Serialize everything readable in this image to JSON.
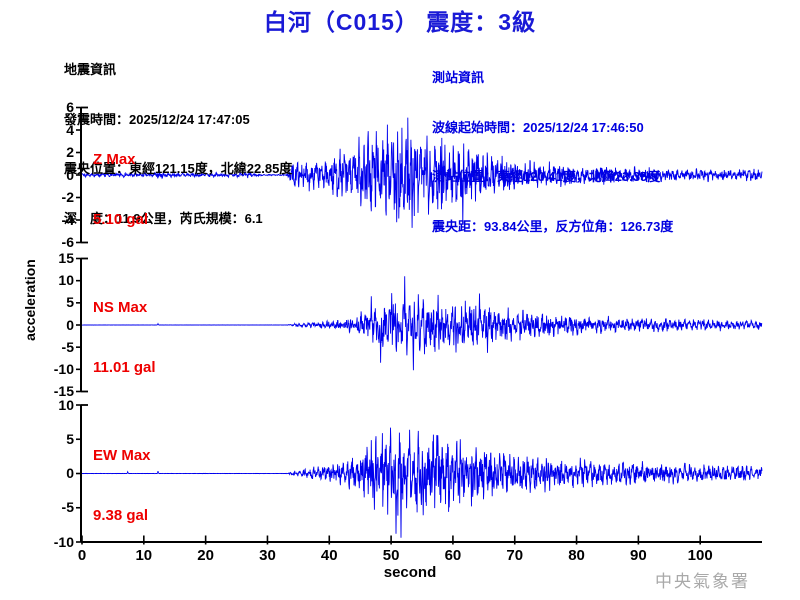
{
  "header": {
    "title": "白河（C015） 震度：3級"
  },
  "quake_info": {
    "heading": "地震資訊",
    "lines": [
      "發震時間：2025/12/24 17:47:05",
      "震央位置：東經121.15度，北緯22.85度",
      "深　度：11.9公里，芮氏規模：6.1"
    ]
  },
  "station_info": {
    "heading": "測站資訊",
    "lines": [
      "波線起始時間：2025/12/24 17:46:50",
      "測站位置：東經120.41度，北緯23.35度",
      "震央距：93.84公里，反方位角：126.73度"
    ]
  },
  "watermark": "中央氣象署",
  "colors": {
    "title": "#1a1ad6",
    "quake_info": "#000000",
    "station_info": "#0000e0",
    "max_label": "#ee0000",
    "trace": "#0000ee",
    "axis": "#000000",
    "watermark": "#a9a9a9"
  },
  "chart_data": {
    "type": "line",
    "title": "",
    "xlabel": "second",
    "ylabel": "acceleration",
    "y_unit": "gal",
    "x_range": [
      0,
      110
    ],
    "x_ticks": [
      0,
      10,
      20,
      30,
      40,
      50,
      60,
      70,
      80,
      90,
      100
    ],
    "grid": false,
    "channels": [
      {
        "name": "Z",
        "max_label": "Z Max",
        "max_value_label": "5.10 gal",
        "max_value_gal": 5.1,
        "ylim": [
          -6,
          6
        ],
        "yticks": [
          6,
          4,
          2,
          0,
          -2,
          -4,
          -6
        ],
        "onset_s": 33.5,
        "seed": 7,
        "envelope_gal": [
          [
            0,
            0.13
          ],
          [
            11.5,
            0.13
          ],
          [
            12.5,
            0.28
          ],
          [
            13.5,
            0.13
          ],
          [
            25.5,
            0.13
          ],
          [
            26.5,
            0.22
          ],
          [
            28,
            0.1
          ],
          [
            29.5,
            0.04
          ],
          [
            33,
            0.04
          ],
          [
            34,
            0.75
          ],
          [
            36,
            0.9
          ],
          [
            40,
            1.15
          ],
          [
            44,
            2.0
          ],
          [
            48,
            2.8
          ],
          [
            54,
            2.9
          ],
          [
            58,
            2.3
          ],
          [
            62,
            1.9
          ],
          [
            66,
            1.3
          ],
          [
            72,
            0.9
          ],
          [
            80,
            0.6
          ],
          [
            90,
            0.45
          ],
          [
            100,
            0.4
          ],
          [
            110,
            0.35
          ]
        ],
        "spikes_gal": [
          [
            44.8,
            3.4
          ],
          [
            47.6,
            3.9
          ],
          [
            49.2,
            -3.6
          ],
          [
            50.9,
            -4.2
          ],
          [
            52.7,
            5.1
          ],
          [
            53.4,
            -4.7
          ],
          [
            55.8,
            3.5
          ],
          [
            58.2,
            3.3
          ],
          [
            61.6,
            -4.3
          ]
        ]
      },
      {
        "name": "NS",
        "max_label": "NS Max",
        "max_value_label": "11.01 gal",
        "max_value_gal": 11.01,
        "ylim": [
          -15,
          15
        ],
        "yticks": [
          15,
          10,
          5,
          0,
          -5,
          -10,
          -15
        ],
        "onset_s": 33.5,
        "seed": 13,
        "envelope_gal": [
          [
            0,
            0.015
          ],
          [
            33,
            0.015
          ],
          [
            34.5,
            0.25
          ],
          [
            38,
            0.5
          ],
          [
            42,
            0.9
          ],
          [
            45,
            1.8
          ],
          [
            47,
            3.2
          ],
          [
            49,
            4.6
          ],
          [
            56,
            4.6
          ],
          [
            60,
            3.8
          ],
          [
            64,
            3.4
          ],
          [
            68,
            2.8
          ],
          [
            72,
            2.2
          ],
          [
            78,
            1.7
          ],
          [
            85,
            1.3
          ],
          [
            95,
            1.0
          ],
          [
            110,
            0.75
          ]
        ],
        "spikes_gal": [
          [
            12.3,
            0.3
          ],
          [
            46.8,
            6.5
          ],
          [
            48.3,
            -8.5
          ],
          [
            50.1,
            7.2
          ],
          [
            52.2,
            11.01
          ],
          [
            53.6,
            -10.2
          ],
          [
            55.4,
            -6.6
          ],
          [
            57.6,
            6.8
          ],
          [
            60.5,
            -6.2
          ],
          [
            64.3,
            7.1
          ],
          [
            65.6,
            -6.3
          ]
        ]
      },
      {
        "name": "EW",
        "max_label": "EW Max",
        "max_value_label": "9.38 gal",
        "max_value_gal": 9.38,
        "ylim": [
          -10,
          10
        ],
        "yticks": [
          10,
          5,
          0,
          -5,
          -10
        ],
        "onset_s": 33.5,
        "seed": 21,
        "envelope_gal": [
          [
            0,
            0.015
          ],
          [
            33,
            0.015
          ],
          [
            34.5,
            0.3
          ],
          [
            38,
            0.7
          ],
          [
            42,
            1.2
          ],
          [
            45,
            2.1
          ],
          [
            47,
            3.2
          ],
          [
            49.5,
            4.3
          ],
          [
            56,
            4.2
          ],
          [
            60,
            3.4
          ],
          [
            64,
            2.8
          ],
          [
            68,
            2.3
          ],
          [
            72,
            2.0
          ],
          [
            78,
            1.6
          ],
          [
            85,
            1.3
          ],
          [
            95,
            1.0
          ],
          [
            110,
            0.7
          ]
        ],
        "spikes_gal": [
          [
            7.4,
            0.25
          ],
          [
            12.3,
            0.35
          ],
          [
            47.3,
            -5.3
          ],
          [
            48.6,
            5.9
          ],
          [
            49.9,
            6.7
          ],
          [
            50.8,
            -8.8
          ],
          [
            51.6,
            -9.38
          ],
          [
            53.0,
            6.4
          ],
          [
            55.2,
            -6.1
          ],
          [
            57.4,
            5.6
          ],
          [
            59.3,
            -5.6
          ],
          [
            61.2,
            5.0
          ],
          [
            63.0,
            -4.8
          ]
        ]
      }
    ]
  }
}
